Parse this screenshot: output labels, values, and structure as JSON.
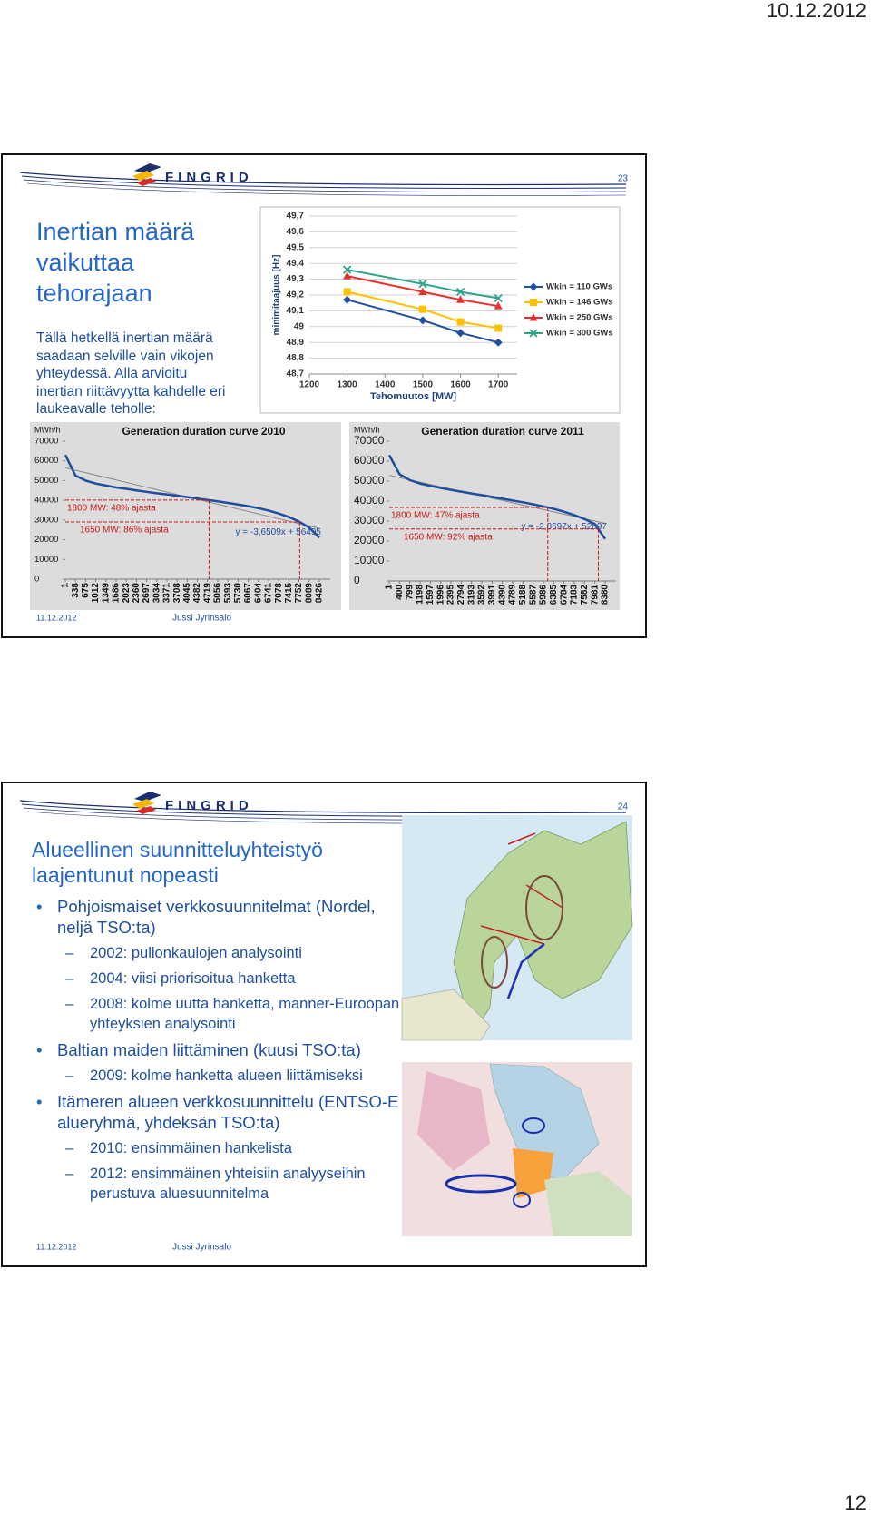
{
  "page_header": {
    "date": "10.12.2012"
  },
  "page_number": "12",
  "slides": [
    {
      "logo": "FINGRID",
      "number": "23",
      "title": "Inertian määrä vaikuttaa tehorajaan",
      "body": "Tällä hetkellä inertian määrä saadaan selville vain vikojen yhteydessä. Alla arvioitu inertian riittävyytta kahdelle eri laukeavalle teholle:",
      "footer_date": "11.12.2012",
      "footer_author": "Jussi Jyrinsalo"
    },
    {
      "logo": "FINGRID",
      "number": "24",
      "title": "Alueellinen suunnitteluyhteistyö laajentunut nopeasti",
      "bullets": [
        {
          "level": 1,
          "text": "Pohjoismaiset verkkosuunnitelmat (Nordel, neljä TSO:ta)"
        },
        {
          "level": 2,
          "text": "2002: pullonkaulojen analysointi"
        },
        {
          "level": 2,
          "text": "2004: viisi priorisoitua hanketta"
        },
        {
          "level": 2,
          "text": "2008: kolme uutta hanketta, manner-Euroopan yhteyksien analysointi"
        },
        {
          "level": 1,
          "text": "Baltian maiden liittäminen (kuusi TSO:ta)"
        },
        {
          "level": 2,
          "text": "2009: kolme hanketta alueen liittämiseksi"
        },
        {
          "level": 1,
          "text": "Itämeren alueen verkkosuunnittelu (ENTSO-E alueryhmä, yhdeksän TSO:ta)"
        },
        {
          "level": 2,
          "text": "2010: ensimmäinen hankelista"
        },
        {
          "level": 2,
          "text": "2012: ensimmäinen yhteisiin analyyseihin perustuva aluesuunnitelma"
        }
      ],
      "footer_date": "11.12.2012",
      "footer_author": "Jussi Jyrinsalo"
    }
  ],
  "chart_data": [
    {
      "type": "line",
      "x_label": "Tehomuutos [MW]",
      "y_label": "minimitaajuus [Hz]",
      "x": [
        1300,
        1500,
        1600,
        1700
      ],
      "xlim": [
        1200,
        1750
      ],
      "xticks": [
        1200,
        1300,
        1400,
        1500,
        1600,
        1700
      ],
      "ylim": [
        48.7,
        49.7
      ],
      "yticks": [
        {
          "value": 48.7,
          "label": "48,7"
        },
        {
          "value": 48.8,
          "label": "48,8"
        },
        {
          "value": 48.9,
          "label": "48,9"
        },
        49,
        {
          "value": 49.1,
          "label": "49,1"
        },
        {
          "value": 49.2,
          "label": "49,2"
        },
        {
          "value": 49.3,
          "label": "49,3"
        },
        {
          "value": 49.4,
          "label": "49,4"
        },
        {
          "value": 49.5,
          "label": "49,5"
        },
        {
          "value": 49.6,
          "label": "49,6"
        },
        {
          "value": 49.7,
          "label": "49,7"
        }
      ],
      "grid": true,
      "legend": "right",
      "series": [
        {
          "name": "Wkin = 110 GWs",
          "color": "#1f4fa0",
          "marker": "diamond",
          "values": [
            49.17,
            49.04,
            48.96,
            48.9
          ]
        },
        {
          "name": "Wkin = 146 GWs",
          "color": "#ffc000",
          "marker": "square",
          "values": [
            49.22,
            49.11,
            49.03,
            48.99
          ]
        },
        {
          "name": "Wkin = 250 GWs",
          "color": "#e8312f",
          "marker": "triangle",
          "values": [
            49.32,
            49.22,
            49.17,
            49.13
          ]
        },
        {
          "name": "Wkin = 300 GWs",
          "color": "#2ca58d",
          "marker": "x",
          "values": [
            49.36,
            49.27,
            49.22,
            49.18
          ]
        }
      ]
    },
    {
      "type": "duration",
      "title": "Generation duration curve 2010",
      "y_label": "MWh/h",
      "color": "#1f4e9e",
      "x": [
        1,
        338,
        675,
        1012,
        1349,
        1686,
        2023,
        2360,
        2697,
        3034,
        3371,
        3708,
        4045,
        4382,
        4719,
        5056,
        5393,
        5730,
        6067,
        6404,
        6741,
        7078,
        7415,
        7752,
        8089,
        8426
      ],
      "xlim": [
        1,
        8426
      ],
      "values": [
        63000,
        52500,
        50000,
        48500,
        47500,
        46500,
        45800,
        45000,
        44300,
        43600,
        43000,
        42300,
        41600,
        40900,
        40200,
        39500,
        38700,
        37900,
        37000,
        36000,
        34800,
        33300,
        31500,
        29200,
        26200,
        21000
      ],
      "ylim": [
        0,
        70000
      ],
      "yticks": [
        0,
        10000,
        20000,
        30000,
        40000,
        50000,
        60000,
        70000
      ],
      "annotations": [
        {
          "text": "1800 MW: 48% ajasta",
          "value": 40100
        },
        {
          "text": "1650 MW: 86% ajasta",
          "value": 29000
        }
      ],
      "trendline": {
        "label": "y = -3,6509x + 56495",
        "slope": -3.6509,
        "intercept": 56495
      }
    },
    {
      "type": "duration",
      "title": "Generation duration curve 2011",
      "y_label": "MWh/h",
      "color": "#1f4e9e",
      "x": [
        1,
        400,
        799,
        1198,
        1597,
        1996,
        2395,
        2794,
        3193,
        3592,
        3991,
        4390,
        4789,
        5188,
        5587,
        5986,
        6385,
        6784,
        7183,
        7582,
        7981,
        8380
      ],
      "xlim": [
        1,
        8380
      ],
      "values": [
        63000,
        53500,
        50500,
        48800,
        47600,
        46600,
        45600,
        44700,
        43800,
        43000,
        42100,
        41200,
        40300,
        39400,
        38400,
        37300,
        36100,
        34700,
        33000,
        31000,
        28500,
        21000
      ],
      "ylim": [
        0,
        70000
      ],
      "yticks": [
        0,
        10000,
        20000,
        30000,
        40000,
        50000,
        60000,
        70000
      ],
      "annotations": [
        {
          "text": "1800 MW: 47% ajasta",
          "value": 36800
        },
        {
          "text": "1650 MW: 92% ajasta",
          "value": 26000
        }
      ],
      "trendline": {
        "label": "y = -2,8697x + 52897",
        "slope": -2.8697,
        "intercept": 52897
      }
    }
  ]
}
